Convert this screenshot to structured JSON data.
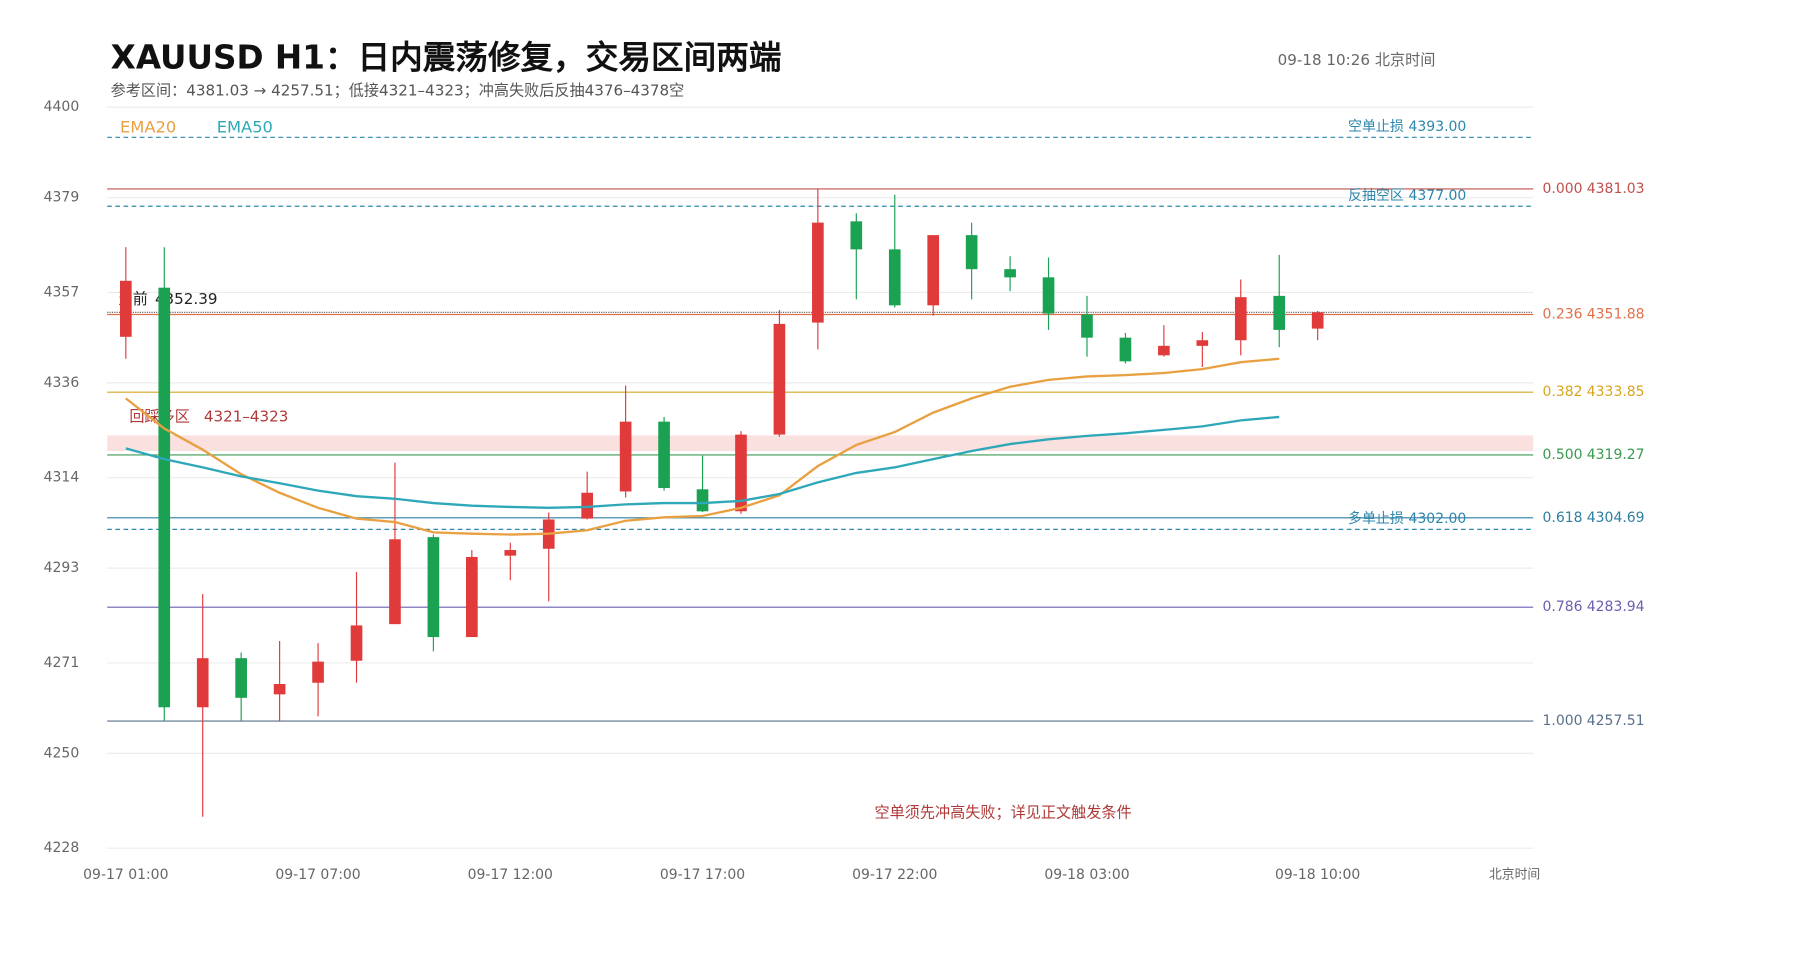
{
  "chart_data": {
    "type": "candlestick",
    "title": "XAUUSD  H1：日内震荡修复，交易区间两端",
    "subtitle": "参考区间：4381.03 → 4257.51；低接4321–4323；冲高失败后反抽4376–4378空",
    "timestamp": "09-18  10:26 北京时间",
    "annotation": "空单须先冲高失败；详见正文触发条件",
    "x_label": "北京时间",
    "categories": [
      "09-17 01:00",
      null,
      null,
      null,
      null,
      "09-17 07:00",
      null,
      null,
      null,
      null,
      "09-17 12:00",
      null,
      null,
      null,
      null,
      "09-17 17:00",
      null,
      null,
      null,
      null,
      "09-17 22:00",
      null,
      null,
      null,
      null,
      "09-18 03:00",
      null,
      null,
      null,
      null,
      null,
      "09-18 10:00"
    ],
    "open": [
      4346.7,
      4358.1,
      4260.7,
      4272.1,
      4263.7,
      4266.4,
      4271.5,
      4280.0,
      4300.2,
      4277.0,
      4295.9,
      4297.5,
      4304.5,
      4310.8,
      4327.0,
      4311.3,
      4306.2,
      4324.0,
      4350.0,
      4373.5,
      4367.0,
      4354.0,
      4370.3,
      4362.4,
      4360.5,
      4351.9,
      4346.5,
      4342.4,
      4344.6,
      4345.9,
      4356.2,
      4348.6
    ],
    "high": [
      4367.5,
      4367.5,
      4287.0,
      4273.4,
      4276.1,
      4275.6,
      4292.1,
      4317.5,
      4300.8,
      4297.2,
      4298.9,
      4305.9,
      4315.4,
      4335.4,
      4328.1,
      4319.1,
      4324.8,
      4352.9,
      4381.0,
      4375.4,
      4379.7,
      4370.3,
      4373.2,
      4365.4,
      4365.1,
      4356.2,
      4347.6,
      4349.4,
      4347.8,
      4360.0,
      4365.7,
      4352.7
    ],
    "low": [
      4341.6,
      4257.5,
      4235.3,
      4257.5,
      4257.5,
      4258.6,
      4266.4,
      4280.0,
      4273.7,
      4277.0,
      4290.2,
      4285.3,
      4304.3,
      4309.4,
      4311.0,
      4306.0,
      4305.6,
      4323.5,
      4343.8,
      4355.4,
      4353.5,
      4351.6,
      4355.4,
      4357.3,
      4348.3,
      4342.1,
      4340.5,
      4342.1,
      4339.7,
      4342.4,
      4344.3,
      4345.9
    ],
    "close": [
      4359.7,
      4260.7,
      4272.1,
      4262.9,
      4266.1,
      4271.3,
      4279.7,
      4299.7,
      4277.0,
      4295.6,
      4297.2,
      4304.3,
      4310.5,
      4327.0,
      4311.6,
      4306.2,
      4324.0,
      4349.7,
      4373.2,
      4367.0,
      4354.0,
      4370.3,
      4362.4,
      4360.5,
      4352.1,
      4346.5,
      4341.0,
      4344.6,
      4345.9,
      4355.9,
      4348.3,
      4352.39
    ],
    "up_color": "#e03a3a",
    "down_color": "#1aa152",
    "series": [
      {
        "name": "EMA20",
        "color": "#e8a040",
        "values": [
          4332.4,
          4325.4,
          4320.5,
          4314.8,
          4310.5,
          4307.0,
          4304.5,
          4303.7,
          4301.3,
          4301.0,
          4300.8,
          4301.0,
          4301.8,
          4304.0,
          4304.8,
          4305.1,
          4307.0,
          4309.9,
          4316.7,
          4321.6,
          4324.6,
          4329.1,
          4332.4,
          4335.1,
          4336.7,
          4337.5,
          4337.8,
          4338.3,
          4339.2,
          4340.8,
          4341.6,
          null
        ]
      },
      {
        "name": "EMA50",
        "color": "#2ea8b8",
        "values": [
          4320.8,
          4318.3,
          4316.4,
          4314.3,
          4312.7,
          4311.0,
          4309.7,
          4309.1,
          4308.1,
          4307.5,
          4307.2,
          4307.0,
          4307.2,
          4307.8,
          4308.1,
          4308.1,
          4308.6,
          4310.2,
          4312.9,
          4315.1,
          4316.4,
          4318.3,
          4320.2,
          4321.8,
          4322.9,
          4323.7,
          4324.3,
          4325.1,
          4325.9,
          4327.3,
          4328.1,
          null
        ]
      }
    ],
    "ylim": [
      4228,
      4400
    ],
    "yticks": [
      4400,
      4379,
      4357,
      4336,
      4314,
      4293,
      4271,
      4250,
      4228
    ],
    "grid": true,
    "fib_levels": [
      {
        "ratio": "0.000",
        "value": 4381.03,
        "color": "#c0504d"
      },
      {
        "ratio": "0.236",
        "value": 4351.88,
        "color": "#e0704a"
      },
      {
        "ratio": "0.382",
        "value": 4333.85,
        "color": "#d9a520"
      },
      {
        "ratio": "0.500",
        "value": 4319.27,
        "color": "#3a9a50"
      },
      {
        "ratio": "0.618",
        "value": 4304.69,
        "color": "#2e7fa0"
      },
      {
        "ratio": "0.786",
        "value": 4283.94,
        "color": "#6a5fb0"
      },
      {
        "ratio": "1.000",
        "value": 4257.51,
        "color": "#5a6f8a"
      }
    ],
    "levels": [
      {
        "name": "空单止损",
        "price": {
          "value": 4393,
          "label": "4393.00"
        },
        "color": "#2e86ab"
      },
      {
        "name": "反抽空区",
        "price": {
          "value": 4377,
          "label": "4377.00"
        },
        "color": "#2e86ab"
      },
      {
        "name": "多单止损",
        "price": {
          "value": 4302,
          "label": "4302.00"
        },
        "color": "#2e86ab"
      }
    ],
    "zone": {
      "name": "回踩多区",
      "range_label": "4321–4323",
      "low": 4321,
      "high": 4323,
      "color": "#fbe0e0"
    },
    "current": {
      "label": "当前",
      "value": 4352.39
    }
  }
}
